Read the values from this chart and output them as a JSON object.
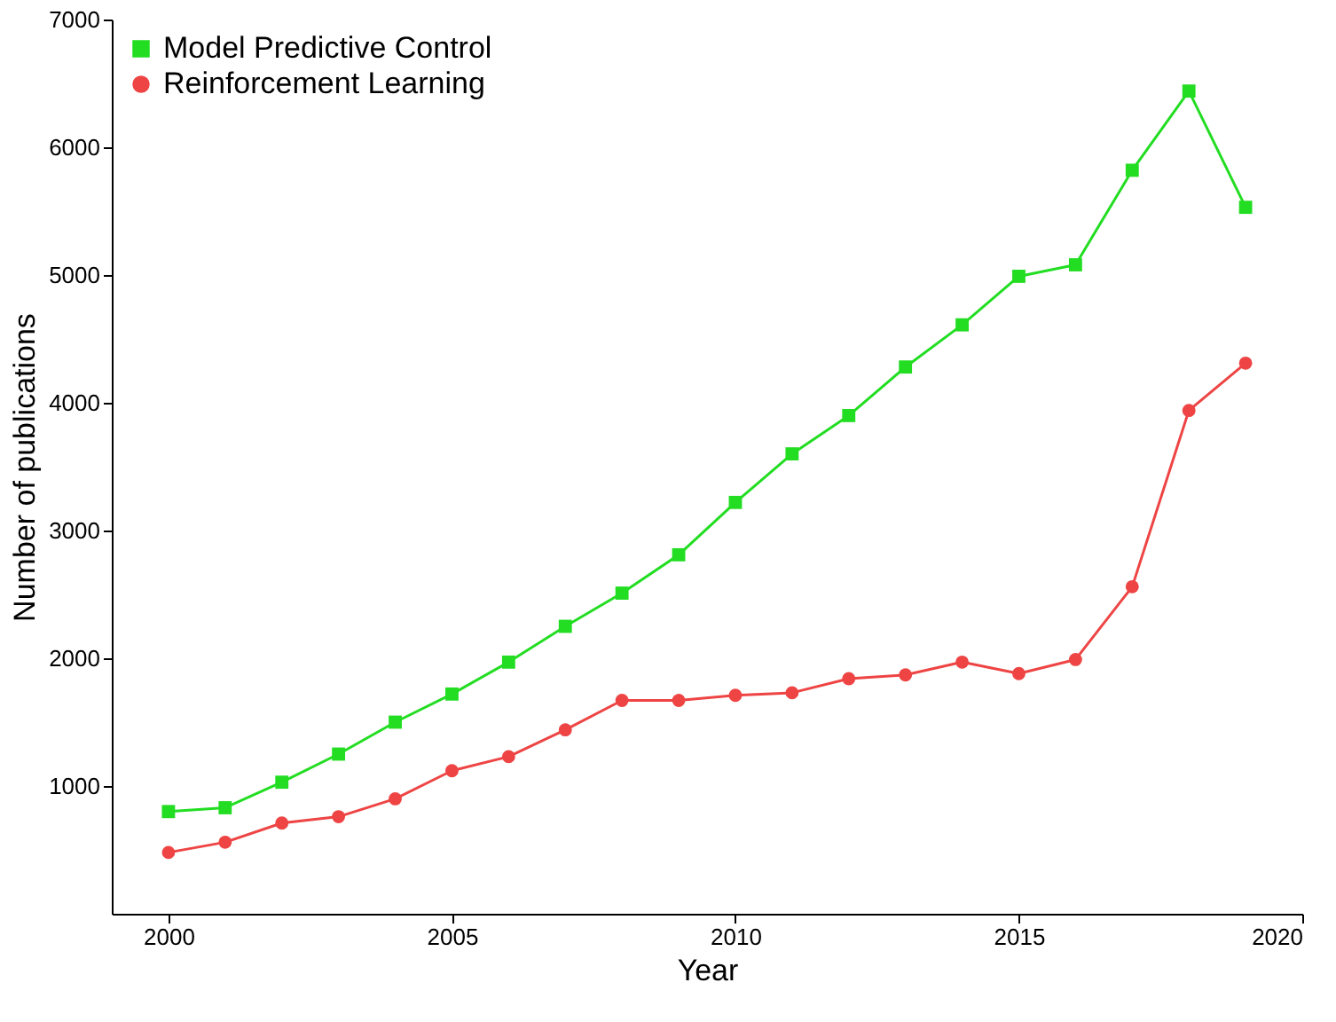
{
  "chart_data": {
    "type": "line",
    "xlabel": "Year",
    "ylabel": "Number of publications",
    "x": [
      2000,
      2001,
      2002,
      2003,
      2004,
      2005,
      2006,
      2007,
      2008,
      2009,
      2010,
      2011,
      2012,
      2013,
      2014,
      2015,
      2016,
      2017,
      2018,
      2019
    ],
    "series": [
      {
        "name": "Model Predictive Control",
        "color": "#22dd22",
        "marker": "square",
        "values": [
          800,
          830,
          1030,
          1250,
          1500,
          1720,
          1970,
          2250,
          2510,
          2810,
          3220,
          3600,
          3900,
          4280,
          4610,
          4990,
          5080,
          5820,
          6440,
          5530
        ]
      },
      {
        "name": "Reinforcement Learning",
        "color": "#ee4444",
        "marker": "circle",
        "values": [
          480,
          560,
          710,
          760,
          900,
          1120,
          1230,
          1440,
          1670,
          1670,
          1710,
          1730,
          1840,
          1870,
          1970,
          1880,
          1990,
          2560,
          3940,
          4310
        ]
      }
    ],
    "xlim": [
      1999,
      2020
    ],
    "xticks": [
      2000,
      2005,
      2010,
      2015,
      2020
    ],
    "ylim": [
      0,
      7000
    ],
    "yticks": [
      1000,
      2000,
      3000,
      4000,
      5000,
      6000,
      7000
    ],
    "grid": false,
    "legend": "top left",
    "line_style": "solid"
  }
}
